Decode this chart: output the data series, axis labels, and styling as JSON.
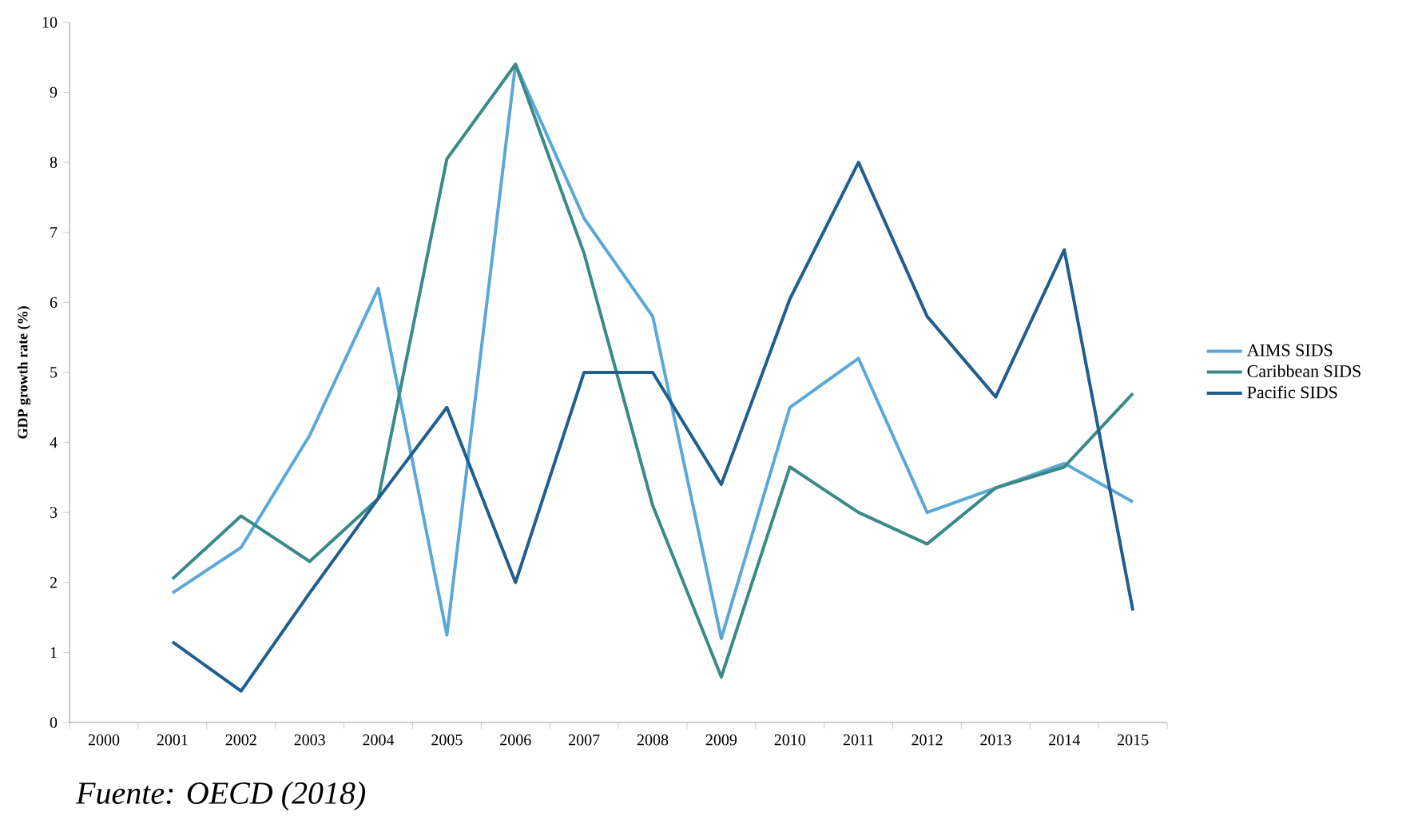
{
  "chart_data": {
    "type": "line",
    "ylabel": "GDP growth rate (%)",
    "categories": [
      "2000",
      "2001",
      "2002",
      "2003",
      "2004",
      "2005",
      "2006",
      "2007",
      "2008",
      "2009",
      "2010",
      "2011",
      "2012",
      "2013",
      "2014",
      "2015"
    ],
    "series": [
      {
        "name": "AIMS SIDS",
        "color": "#5ba8d8",
        "values": [
          null,
          1.85,
          2.5,
          4.1,
          6.2,
          1.25,
          9.4,
          7.2,
          5.8,
          1.2,
          4.5,
          5.2,
          3.0,
          3.35,
          3.7,
          3.15
        ]
      },
      {
        "name": "Caribbean SIDS",
        "color": "#3a8a85",
        "values": [
          null,
          2.05,
          2.95,
          2.3,
          3.2,
          8.05,
          9.4,
          6.7,
          3.1,
          0.65,
          3.65,
          3.0,
          2.55,
          3.35,
          3.65,
          4.7
        ]
      },
      {
        "name": "Pacific SIDS",
        "color": "#205e8e",
        "values": [
          null,
          1.15,
          0.45,
          1.85,
          3.2,
          4.5,
          2.0,
          5.0,
          5.0,
          3.4,
          6.05,
          8.0,
          5.8,
          4.65,
          6.75,
          1.6
        ]
      }
    ],
    "ylim": [
      0,
      10
    ],
    "yticks": [
      0,
      1,
      2,
      3,
      4,
      5,
      6,
      7,
      8,
      9,
      10
    ],
    "grid": false,
    "legend": "right",
    "marker": "none",
    "line_style": "solid",
    "annotations": [
      "*Fuente: OECD (2018)*"
    ]
  }
}
